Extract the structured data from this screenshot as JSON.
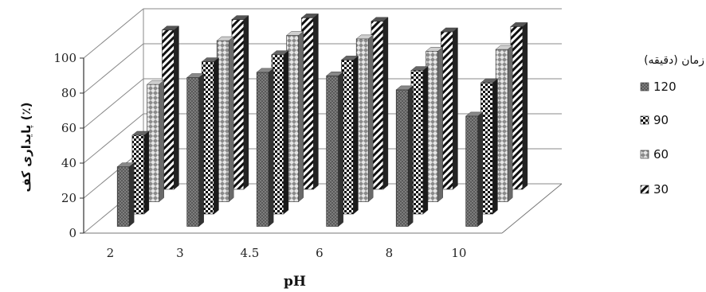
{
  "chart_data": {
    "type": "bar",
    "title": "",
    "xlabel": "pH",
    "ylabel": "پایداری کف (٪)",
    "ylim": [
      0,
      100
    ],
    "yticks": [
      "0",
      "20",
      "40",
      "60",
      "80",
      "100"
    ],
    "categories": [
      "2",
      "3",
      "4.5",
      "6",
      "8",
      "10"
    ],
    "legend_title": "زمان (دقیقه)",
    "legend_position": "right",
    "grid": true,
    "series": [
      {
        "name": "120",
        "values": [
          34,
          85,
          88,
          86,
          78,
          63
        ]
      },
      {
        "name": "90",
        "values": [
          45,
          87,
          91,
          88,
          82,
          75
        ]
      },
      {
        "name": "60",
        "values": [
          67,
          92,
          95,
          93,
          86,
          87
        ]
      },
      {
        "name": "30",
        "values": [
          91,
          97,
          98,
          96,
          90,
          93
        ]
      }
    ],
    "colors": {
      "s120": "#555555",
      "s90": "#222222",
      "s60": "#9a9a9a",
      "s30": "#333333",
      "grid": "#888888"
    }
  }
}
